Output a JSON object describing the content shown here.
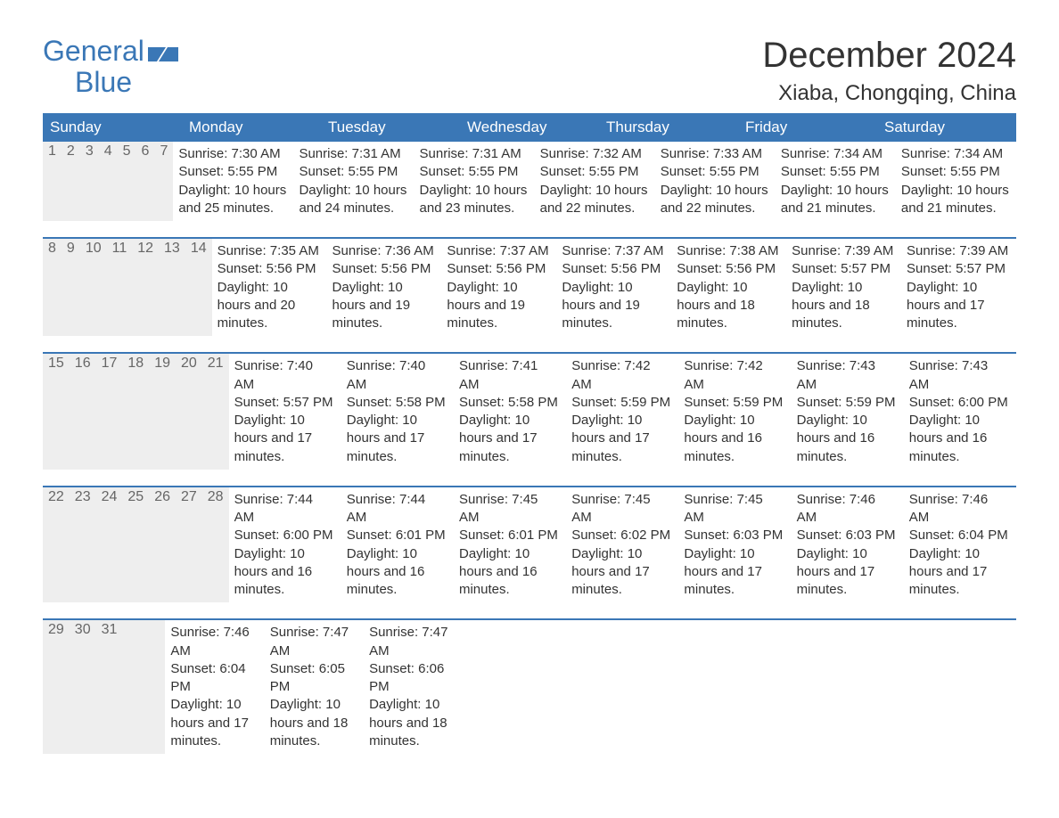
{
  "brand": {
    "word1": "General",
    "word2": "Blue",
    "color": "#3a77b6"
  },
  "title": "December 2024",
  "location": "Xiaba, Chongqing, China",
  "colors": {
    "header_bg": "#3a77b6",
    "header_text": "#ffffff",
    "daynum_bg": "#eeeeee",
    "daynum_text": "#666666",
    "body_text": "#333333",
    "border": "#3a77b6",
    "background": "#ffffff"
  },
  "typography": {
    "title_fontsize": 40,
    "location_fontsize": 24,
    "dow_fontsize": 17,
    "daynum_fontsize": 16,
    "body_fontsize": 15
  },
  "dow": [
    "Sunday",
    "Monday",
    "Tuesday",
    "Wednesday",
    "Thursday",
    "Friday",
    "Saturday"
  ],
  "weeks": [
    [
      {
        "n": "1",
        "sunrise": "7:30 AM",
        "sunset": "5:55 PM",
        "dlh": "10",
        "dlm": "25"
      },
      {
        "n": "2",
        "sunrise": "7:31 AM",
        "sunset": "5:55 PM",
        "dlh": "10",
        "dlm": "24"
      },
      {
        "n": "3",
        "sunrise": "7:31 AM",
        "sunset": "5:55 PM",
        "dlh": "10",
        "dlm": "23"
      },
      {
        "n": "4",
        "sunrise": "7:32 AM",
        "sunset": "5:55 PM",
        "dlh": "10",
        "dlm": "22"
      },
      {
        "n": "5",
        "sunrise": "7:33 AM",
        "sunset": "5:55 PM",
        "dlh": "10",
        "dlm": "22"
      },
      {
        "n": "6",
        "sunrise": "7:34 AM",
        "sunset": "5:55 PM",
        "dlh": "10",
        "dlm": "21"
      },
      {
        "n": "7",
        "sunrise": "7:34 AM",
        "sunset": "5:55 PM",
        "dlh": "10",
        "dlm": "21"
      }
    ],
    [
      {
        "n": "8",
        "sunrise": "7:35 AM",
        "sunset": "5:56 PM",
        "dlh": "10",
        "dlm": "20"
      },
      {
        "n": "9",
        "sunrise": "7:36 AM",
        "sunset": "5:56 PM",
        "dlh": "10",
        "dlm": "19"
      },
      {
        "n": "10",
        "sunrise": "7:37 AM",
        "sunset": "5:56 PM",
        "dlh": "10",
        "dlm": "19"
      },
      {
        "n": "11",
        "sunrise": "7:37 AM",
        "sunset": "5:56 PM",
        "dlh": "10",
        "dlm": "19"
      },
      {
        "n": "12",
        "sunrise": "7:38 AM",
        "sunset": "5:56 PM",
        "dlh": "10",
        "dlm": "18"
      },
      {
        "n": "13",
        "sunrise": "7:39 AM",
        "sunset": "5:57 PM",
        "dlh": "10",
        "dlm": "18"
      },
      {
        "n": "14",
        "sunrise": "7:39 AM",
        "sunset": "5:57 PM",
        "dlh": "10",
        "dlm": "17"
      }
    ],
    [
      {
        "n": "15",
        "sunrise": "7:40 AM",
        "sunset": "5:57 PM",
        "dlh": "10",
        "dlm": "17"
      },
      {
        "n": "16",
        "sunrise": "7:40 AM",
        "sunset": "5:58 PM",
        "dlh": "10",
        "dlm": "17"
      },
      {
        "n": "17",
        "sunrise": "7:41 AM",
        "sunset": "5:58 PM",
        "dlh": "10",
        "dlm": "17"
      },
      {
        "n": "18",
        "sunrise": "7:42 AM",
        "sunset": "5:59 PM",
        "dlh": "10",
        "dlm": "17"
      },
      {
        "n": "19",
        "sunrise": "7:42 AM",
        "sunset": "5:59 PM",
        "dlh": "10",
        "dlm": "16"
      },
      {
        "n": "20",
        "sunrise": "7:43 AM",
        "sunset": "5:59 PM",
        "dlh": "10",
        "dlm": "16"
      },
      {
        "n": "21",
        "sunrise": "7:43 AM",
        "sunset": "6:00 PM",
        "dlh": "10",
        "dlm": "16"
      }
    ],
    [
      {
        "n": "22",
        "sunrise": "7:44 AM",
        "sunset": "6:00 PM",
        "dlh": "10",
        "dlm": "16"
      },
      {
        "n": "23",
        "sunrise": "7:44 AM",
        "sunset": "6:01 PM",
        "dlh": "10",
        "dlm": "16"
      },
      {
        "n": "24",
        "sunrise": "7:45 AM",
        "sunset": "6:01 PM",
        "dlh": "10",
        "dlm": "16"
      },
      {
        "n": "25",
        "sunrise": "7:45 AM",
        "sunset": "6:02 PM",
        "dlh": "10",
        "dlm": "17"
      },
      {
        "n": "26",
        "sunrise": "7:45 AM",
        "sunset": "6:03 PM",
        "dlh": "10",
        "dlm": "17"
      },
      {
        "n": "27",
        "sunrise": "7:46 AM",
        "sunset": "6:03 PM",
        "dlh": "10",
        "dlm": "17"
      },
      {
        "n": "28",
        "sunrise": "7:46 AM",
        "sunset": "6:04 PM",
        "dlh": "10",
        "dlm": "17"
      }
    ],
    [
      {
        "n": "29",
        "sunrise": "7:46 AM",
        "sunset": "6:04 PM",
        "dlh": "10",
        "dlm": "17"
      },
      {
        "n": "30",
        "sunrise": "7:47 AM",
        "sunset": "6:05 PM",
        "dlh": "10",
        "dlm": "18"
      },
      {
        "n": "31",
        "sunrise": "7:47 AM",
        "sunset": "6:06 PM",
        "dlh": "10",
        "dlm": "18"
      },
      null,
      null,
      null,
      null
    ]
  ],
  "labels": {
    "sunrise": "Sunrise:",
    "sunset": "Sunset:",
    "daylight": "Daylight:",
    "hours": "hours",
    "and": "and",
    "minutes": "minutes."
  }
}
